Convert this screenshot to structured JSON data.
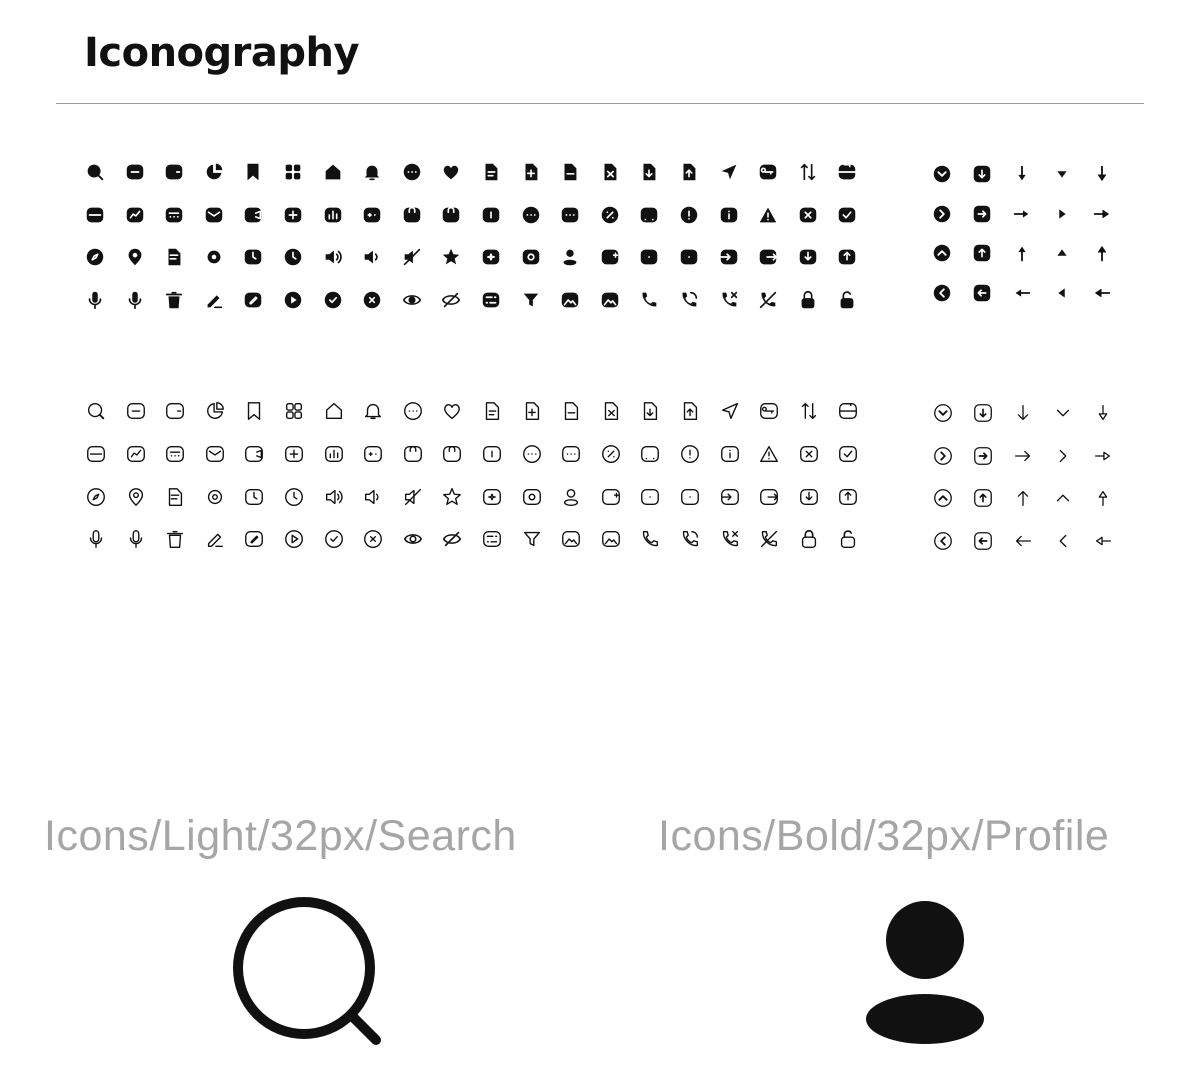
{
  "header": {
    "title": "Iconography"
  },
  "captions": {
    "light": "Icons/Light/32px/Search",
    "bold": "Icons/Bold/32px/Profile"
  },
  "colors": {
    "ink": "#111111",
    "caption": "#a6a6a6",
    "rule": "#9a9a9a"
  },
  "icon_rows": [
    [
      "search",
      "folder",
      "wallet",
      "chart-pie",
      "bookmark",
      "category",
      "home",
      "notification",
      "chat",
      "heart",
      "document",
      "paper-plus",
      "paper-minus",
      "paper-fail",
      "paper-download",
      "paper-upload",
      "send",
      "password",
      "swap",
      "work"
    ],
    [
      "scan",
      "activity",
      "calendar",
      "message",
      "video",
      "plus",
      "chart",
      "game",
      "bag",
      "buy",
      "ticket",
      "more-circle",
      "more-square",
      "discount",
      "cart",
      "danger-circle",
      "info-square",
      "danger-triangle",
      "close-square",
      "tick-square"
    ],
    [
      "discovery",
      "location",
      "paper",
      "setting",
      "time-square",
      "time-circle",
      "volume-up",
      "volume-down",
      "volume-off",
      "star",
      "ticket-star",
      "camera",
      "profile",
      "add-user",
      "two-users",
      "three-users",
      "login",
      "logout",
      "download",
      "upload"
    ],
    [
      "voice",
      "voice-2",
      "delete",
      "edit",
      "edit-square",
      "play",
      "shield-done",
      "shield-fail",
      "show",
      "hide",
      "filter",
      "filter-funnel",
      "image",
      "image-2",
      "call",
      "calling",
      "call-missed",
      "call-silent",
      "lock",
      "unlock"
    ]
  ],
  "arrow_rows": [
    [
      "arrow-down-circle",
      "arrow-down-square",
      "arrow-down",
      "arrow-down-2",
      "arrow-down-3"
    ],
    [
      "arrow-right-circle",
      "arrow-right-square",
      "arrow-right",
      "arrow-right-2",
      "arrow-right-3"
    ],
    [
      "arrow-up-circle",
      "arrow-up-square",
      "arrow-up",
      "arrow-up-2",
      "arrow-up-3"
    ],
    [
      "arrow-left-circle",
      "arrow-left-square",
      "arrow-left",
      "arrow-left-2",
      "arrow-left-3"
    ]
  ]
}
